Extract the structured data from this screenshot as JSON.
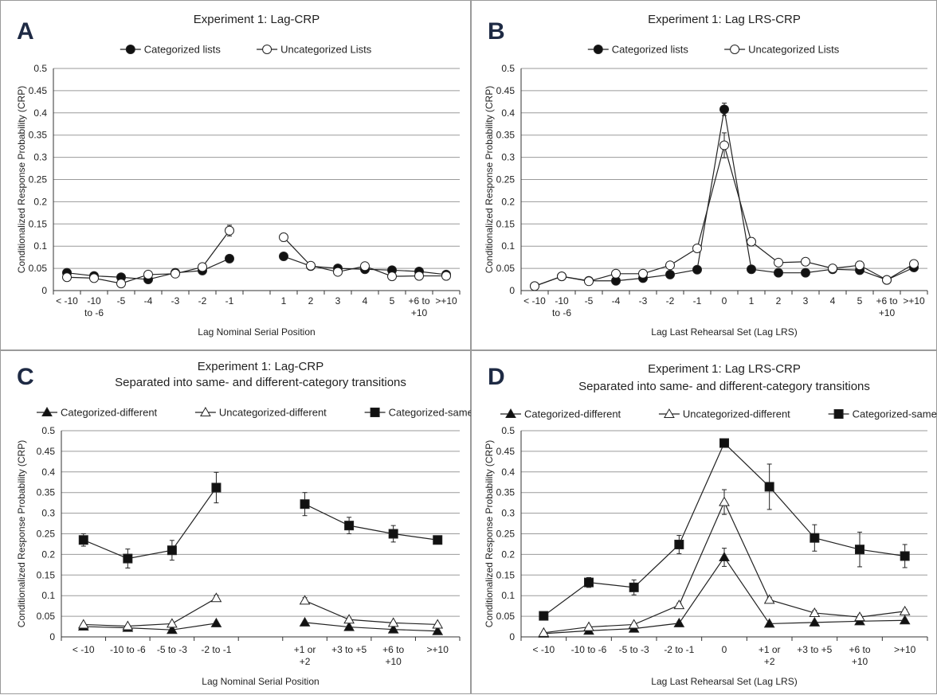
{
  "colors": {
    "series_line": "#222222",
    "filled_marker": "#111111",
    "open_marker": "#ffffff",
    "gridline": "#9a9a9a",
    "panel_border": "#9a9a9a",
    "panel_letter": "#1e2a44"
  },
  "chart_data": [
    {
      "panel_letter": "A",
      "type": "line",
      "title": "Experiment 1: Lag-CRP",
      "subtitle": "",
      "xlabel": "Lag Nominal Serial Position",
      "ylabel": "Conditionalized Response Probability (CRP)",
      "ylim": [
        0,
        0.5
      ],
      "yticks": [
        "0",
        "0.05",
        "0.1",
        "0.15",
        "0.2",
        "0.25",
        "0.3",
        "0.35",
        "0.4",
        "0.45",
        "0.5"
      ],
      "grid": "horizontal",
      "legend": "top",
      "categories": [
        [
          "< -10"
        ],
        [
          "-10",
          "to -6"
        ],
        [
          "-5"
        ],
        [
          "-4"
        ],
        [
          "-3"
        ],
        [
          "-2"
        ],
        [
          "-1"
        ],
        [
          ""
        ],
        [
          "1"
        ],
        [
          "2"
        ],
        [
          "3"
        ],
        [
          "4"
        ],
        [
          "5"
        ],
        [
          "+6 to",
          "+10"
        ],
        [
          ">+10"
        ]
      ],
      "series": [
        {
          "name": "Categorized lists",
          "marker": "circle",
          "fill": "filled",
          "values": [
            0.04,
            0.033,
            0.03,
            0.025,
            0.04,
            0.045,
            0.072,
            null,
            0.077,
            0.055,
            0.05,
            0.048,
            0.046,
            0.043,
            0.036
          ],
          "errors": [
            0.003,
            0.003,
            0.003,
            0.003,
            0.003,
            0.004,
            0.005,
            null,
            0.005,
            0.004,
            0.004,
            0.004,
            0.004,
            0.004,
            0.003
          ]
        },
        {
          "name": "Uncategorized Lists",
          "marker": "circle",
          "fill": "open",
          "values": [
            0.03,
            0.028,
            0.016,
            0.036,
            0.038,
            0.053,
            0.135,
            null,
            0.12,
            0.056,
            0.042,
            0.055,
            0.032,
            0.033,
            0.033
          ],
          "errors": [
            0.003,
            0.003,
            0.003,
            0.003,
            0.003,
            0.004,
            0.012,
            null,
            0.009,
            0.004,
            0.004,
            0.004,
            0.003,
            0.003,
            0.003
          ]
        }
      ]
    },
    {
      "panel_letter": "B",
      "type": "line",
      "title": "Experiment 1: Lag LRS-CRP",
      "subtitle": "",
      "xlabel": "Lag Last Rehearsal Set (Lag LRS)",
      "ylabel": "Conditionalized Response Probability (CRP)",
      "ylim": [
        0,
        0.5
      ],
      "yticks": [
        "0",
        "0.05",
        "0.1",
        "0.15",
        "0.2",
        "0.25",
        "0.3",
        "0.35",
        "0.4",
        "0.45",
        "0.5"
      ],
      "grid": "horizontal",
      "legend": "top",
      "categories": [
        [
          "< -10"
        ],
        [
          "-10",
          "to -6"
        ],
        [
          "-5"
        ],
        [
          "-4"
        ],
        [
          "-3"
        ],
        [
          "-2"
        ],
        [
          "-1"
        ],
        [
          "0"
        ],
        [
          "1"
        ],
        [
          "2"
        ],
        [
          "3"
        ],
        [
          "4"
        ],
        [
          "5"
        ],
        [
          "+6 to",
          "+10"
        ],
        [
          ">+10"
        ]
      ],
      "series": [
        {
          "name": "Categorized lists",
          "marker": "circle",
          "fill": "filled",
          "values": [
            0.01,
            0.032,
            0.022,
            0.022,
            0.028,
            0.036,
            0.047,
            0.408,
            0.048,
            0.04,
            0.04,
            0.048,
            0.046,
            0.024,
            0.052
          ],
          "errors": [
            0.003,
            0.003,
            0.003,
            0.003,
            0.003,
            0.003,
            0.004,
            0.014,
            0.004,
            0.003,
            0.003,
            0.003,
            0.003,
            0.003,
            0.004
          ]
        },
        {
          "name": "Uncategorized Lists",
          "marker": "circle",
          "fill": "open",
          "values": [
            0.01,
            0.032,
            0.021,
            0.038,
            0.038,
            0.057,
            0.095,
            0.327,
            0.11,
            0.063,
            0.065,
            0.05,
            0.057,
            0.024,
            0.06
          ],
          "errors": [
            0.003,
            0.003,
            0.003,
            0.003,
            0.003,
            0.004,
            0.008,
            0.028,
            0.009,
            0.005,
            0.008,
            0.005,
            0.009,
            0.003,
            0.004
          ]
        }
      ]
    },
    {
      "panel_letter": "C",
      "type": "line",
      "title": "Experiment 1: Lag-CRP",
      "subtitle": "Separated into same- and different-category transitions",
      "xlabel": "Lag Nominal Serial Position",
      "ylabel": "Conditionalized Response Probability (CRP)",
      "ylim": [
        0,
        0.5
      ],
      "yticks": [
        "0",
        "0.05",
        "0.1",
        "0.15",
        "0.2",
        "0.25",
        "0.3",
        "0.35",
        "0.4",
        "0.45",
        "0.5"
      ],
      "grid": "horizontal",
      "legend": "top",
      "categories": [
        [
          "< -10"
        ],
        [
          "-10 to -6"
        ],
        [
          "-5 to -3"
        ],
        [
          "-2 to -1"
        ],
        [
          ""
        ],
        [
          "+1 or",
          "+2"
        ],
        [
          "+3 to +5"
        ],
        [
          "+6 to",
          "+10"
        ],
        [
          ">+10"
        ]
      ],
      "series": [
        {
          "name": "Categorized-different",
          "marker": "triangle",
          "fill": "filled",
          "values": [
            0.025,
            0.022,
            0.017,
            0.033,
            null,
            0.035,
            0.024,
            0.018,
            0.014
          ],
          "errors": [
            0.003,
            0.003,
            0.003,
            0.003,
            null,
            0.003,
            0.003,
            0.003,
            0.003
          ]
        },
        {
          "name": "Uncategorized-different",
          "marker": "triangle",
          "fill": "open",
          "values": [
            0.03,
            0.026,
            0.032,
            0.094,
            null,
            0.088,
            0.042,
            0.034,
            0.03
          ],
          "errors": [
            0.003,
            0.003,
            0.003,
            0.007,
            null,
            0.007,
            0.004,
            0.003,
            0.003
          ]
        },
        {
          "name": "Categorized-same",
          "marker": "square",
          "fill": "filled",
          "values": [
            0.235,
            0.19,
            0.21,
            0.362,
            null,
            0.322,
            0.27,
            0.25,
            0.235
          ],
          "errors": [
            0.015,
            0.023,
            0.024,
            0.037,
            null,
            0.028,
            0.02,
            0.02,
            0.01
          ]
        }
      ]
    },
    {
      "panel_letter": "D",
      "type": "line",
      "title": "Experiment 1: Lag LRS-CRP",
      "subtitle": "Separated into same- and different-category transitions",
      "xlabel": "Lag Last Rehearsal Set (Lag LRS)",
      "ylabel": "Conditionalized Response Probability (CRP)",
      "ylim": [
        0,
        0.5
      ],
      "yticks": [
        "0",
        "0.05",
        "0.1",
        "0.15",
        "0.2",
        "0.25",
        "0.3",
        "0.35",
        "0.4",
        "0.45",
        "0.5"
      ],
      "grid": "horizontal",
      "legend": "top",
      "categories": [
        [
          "< -10"
        ],
        [
          "-10 to -6"
        ],
        [
          "-5 to -3"
        ],
        [
          "-2 to -1"
        ],
        [
          "0"
        ],
        [
          "+1 or",
          "+2"
        ],
        [
          "+3 to +5"
        ],
        [
          "+6 to",
          "+10"
        ],
        [
          ">+10"
        ]
      ],
      "series": [
        {
          "name": "Categorized-different",
          "marker": "triangle",
          "fill": "filled",
          "values": [
            0.008,
            0.015,
            0.02,
            0.033,
            0.193,
            0.032,
            0.035,
            0.038,
            0.04
          ],
          "errors": [
            0.003,
            0.003,
            0.003,
            0.003,
            0.022,
            0.003,
            0.003,
            0.003,
            0.003
          ]
        },
        {
          "name": "Uncategorized-different",
          "marker": "triangle",
          "fill": "open",
          "values": [
            0.01,
            0.024,
            0.03,
            0.077,
            0.327,
            0.09,
            0.058,
            0.048,
            0.062
          ],
          "errors": [
            0.003,
            0.003,
            0.003,
            0.005,
            0.03,
            0.006,
            0.006,
            0.005,
            0.005
          ]
        },
        {
          "name": "Categorized-same",
          "marker": "square",
          "fill": "filled",
          "values": [
            0.051,
            0.132,
            0.12,
            0.224,
            0.47,
            0.364,
            0.24,
            0.212,
            0.196
          ],
          "errors": [
            0.004,
            0.012,
            0.018,
            0.022,
            0.008,
            0.055,
            0.032,
            0.042,
            0.028
          ]
        }
      ]
    }
  ]
}
